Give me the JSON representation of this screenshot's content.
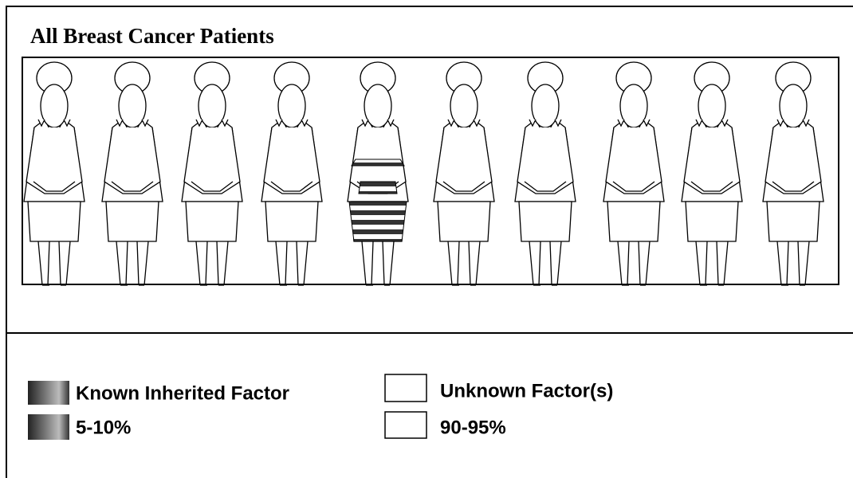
{
  "title": "All Breast Cancer Patients",
  "legend": [
    {
      "label": "Known Inherited Factor",
      "range": "5-10%"
    },
    {
      "label": "Unknown Factor(s)",
      "range": "90-95%"
    }
  ]
}
